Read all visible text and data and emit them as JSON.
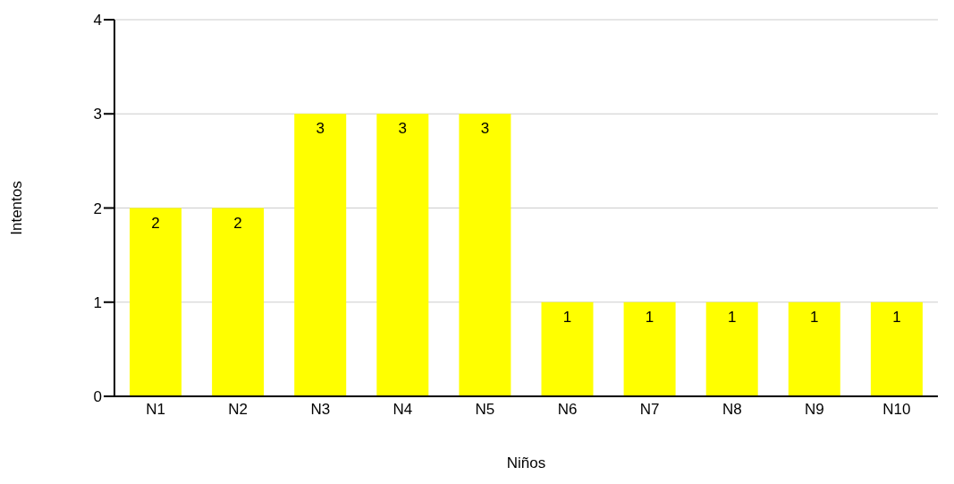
{
  "chart_data": {
    "type": "bar",
    "xlabel": "Niños",
    "ylabel": "Intentos",
    "categories": [
      "N1",
      "N2",
      "N3",
      "N4",
      "N5",
      "N6",
      "N7",
      "N8",
      "N9",
      "N10"
    ],
    "values": [
      2,
      2,
      3,
      3,
      3,
      1,
      1,
      1,
      1,
      1
    ],
    "color": "#ffff00",
    "ylim": [
      0,
      4
    ],
    "yticks": [
      0,
      1,
      2,
      3,
      4
    ],
    "grid": "y",
    "data_labels": true,
    "legend": false
  }
}
